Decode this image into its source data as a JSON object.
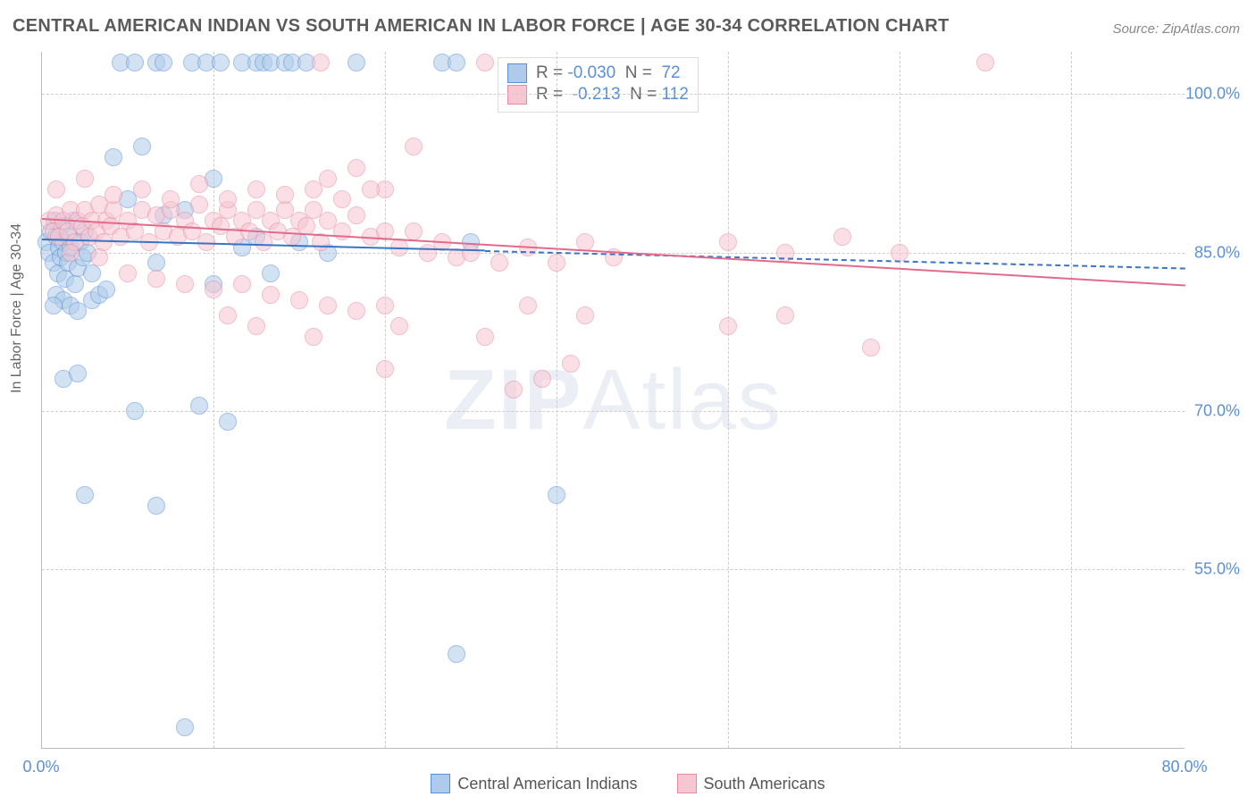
{
  "title": "CENTRAL AMERICAN INDIAN VS SOUTH AMERICAN IN LABOR FORCE | AGE 30-34 CORRELATION CHART",
  "source": "Source: ZipAtlas.com",
  "ylabel": "In Labor Force | Age 30-34",
  "watermark": {
    "bold": "ZIP",
    "rest": "Atlas"
  },
  "chart": {
    "type": "scatter",
    "background_color": "#ffffff",
    "grid_color": "#cccccc",
    "axis_color": "#bbbbbb",
    "xlim": [
      0,
      80
    ],
    "ylim": [
      38,
      104
    ],
    "x_ticks": [
      0,
      80
    ],
    "x_tick_labels": [
      "0.0%",
      "80.0%"
    ],
    "y_ticks": [
      55,
      70,
      85,
      100
    ],
    "y_tick_labels": [
      "55.0%",
      "70.0%",
      "85.0%",
      "100.0%"
    ],
    "tick_color": "#5b8fd6",
    "tick_fontsize": 18,
    "label_fontsize": 16,
    "label_color": "#666666",
    "x_gridlines": [
      12,
      24,
      36,
      48,
      60,
      72
    ],
    "marker_radius": 10,
    "marker_opacity": 0.55,
    "marker_stroke_width": 1.3,
    "series": [
      {
        "name": "Central American Indians",
        "fill": "#aecbeb",
        "stroke": "#5b8fd6",
        "trend": {
          "x1": 0,
          "y1": 86.3,
          "x2": 80,
          "y2": 83.6,
          "solid_until_x": 31,
          "color": "#3a74c4",
          "width": 2
        },
        "R": "-0.030",
        "N": "72",
        "points": [
          [
            0.3,
            86
          ],
          [
            0.5,
            85
          ],
          [
            0.6,
            87
          ],
          [
            0.8,
            84
          ],
          [
            0.9,
            88
          ],
          [
            1.0,
            86.5
          ],
          [
            1.1,
            83
          ],
          [
            1.2,
            85.5
          ],
          [
            1.3,
            84.5
          ],
          [
            1.4,
            87.5
          ],
          [
            1.5,
            86
          ],
          [
            1.6,
            82.5
          ],
          [
            1.7,
            85
          ],
          [
            1.8,
            84
          ],
          [
            1.9,
            86.5
          ],
          [
            2.0,
            85.5
          ],
          [
            2.2,
            88
          ],
          [
            2.3,
            82
          ],
          [
            2.5,
            83.5
          ],
          [
            2.7,
            86
          ],
          [
            2.9,
            84.5
          ],
          [
            3.0,
            87
          ],
          [
            3.2,
            85
          ],
          [
            3.5,
            83
          ],
          [
            1.0,
            81
          ],
          [
            1.5,
            80.5
          ],
          [
            2.0,
            80
          ],
          [
            0.8,
            80
          ],
          [
            3.5,
            80.5
          ],
          [
            4.0,
            81
          ],
          [
            2.5,
            79.5
          ],
          [
            4.5,
            81.5
          ],
          [
            5.5,
            103
          ],
          [
            6.5,
            103
          ],
          [
            8,
            103
          ],
          [
            8.5,
            103
          ],
          [
            10.5,
            103
          ],
          [
            11.5,
            103
          ],
          [
            12.5,
            103
          ],
          [
            14,
            103
          ],
          [
            15,
            103
          ],
          [
            15.5,
            103
          ],
          [
            16,
            103
          ],
          [
            17,
            103
          ],
          [
            17.5,
            103
          ],
          [
            18.5,
            103
          ],
          [
            22,
            103
          ],
          [
            28,
            103
          ],
          [
            29,
            103
          ],
          [
            5,
            94
          ],
          [
            7,
            95
          ],
          [
            12,
            92
          ],
          [
            1.5,
            73
          ],
          [
            2.5,
            73.5
          ],
          [
            6.5,
            70
          ],
          [
            11,
            70.5
          ],
          [
            13,
            69
          ],
          [
            3,
            62
          ],
          [
            8,
            61
          ],
          [
            29,
            47
          ],
          [
            10,
            40
          ],
          [
            6,
            90
          ],
          [
            8.5,
            88.5
          ],
          [
            10,
            89
          ],
          [
            14,
            85.5
          ],
          [
            15,
            86.5
          ],
          [
            18,
            86
          ],
          [
            20,
            85
          ],
          [
            30,
            86
          ],
          [
            8,
            84
          ],
          [
            12,
            82
          ],
          [
            16,
            83
          ],
          [
            36,
            62
          ]
        ]
      },
      {
        "name": "South Americans",
        "fill": "#f6c6d2",
        "stroke": "#e88aa2",
        "trend": {
          "x1": 0,
          "y1": 88.3,
          "x2": 80,
          "y2": 82.0,
          "solid_until_x": 80,
          "color": "#e26a8a",
          "width": 2.5
        },
        "R": "-0.213",
        "N": "112",
        "points": [
          [
            0.5,
            88
          ],
          [
            0.8,
            87
          ],
          [
            1.0,
            88.5
          ],
          [
            1.2,
            86.5
          ],
          [
            1.5,
            88
          ],
          [
            1.8,
            87
          ],
          [
            2.0,
            89
          ],
          [
            2.3,
            86
          ],
          [
            2.5,
            88
          ],
          [
            2.8,
            87.5
          ],
          [
            3.0,
            89
          ],
          [
            3.3,
            86.5
          ],
          [
            3.5,
            88
          ],
          [
            3.8,
            87
          ],
          [
            4.0,
            89.5
          ],
          [
            4.3,
            86
          ],
          [
            4.5,
            88
          ],
          [
            4.8,
            87.5
          ],
          [
            5.0,
            89
          ],
          [
            5.5,
            86.5
          ],
          [
            6.0,
            88
          ],
          [
            6.5,
            87
          ],
          [
            7.0,
            89
          ],
          [
            7.5,
            86
          ],
          [
            8.0,
            88.5
          ],
          [
            8.5,
            87
          ],
          [
            9.0,
            89
          ],
          [
            9.5,
            86.5
          ],
          [
            10,
            88
          ],
          [
            10.5,
            87
          ],
          [
            11,
            89.5
          ],
          [
            11.5,
            86
          ],
          [
            12,
            88
          ],
          [
            12.5,
            87.5
          ],
          [
            13,
            89
          ],
          [
            13.5,
            86.5
          ],
          [
            14,
            88
          ],
          [
            14.5,
            87
          ],
          [
            15,
            89
          ],
          [
            15.5,
            86
          ],
          [
            16,
            88
          ],
          [
            16.5,
            87
          ],
          [
            17,
            89
          ],
          [
            17.5,
            86.5
          ],
          [
            18,
            88
          ],
          [
            18.5,
            87.5
          ],
          [
            19,
            89
          ],
          [
            19.5,
            86
          ],
          [
            20,
            88
          ],
          [
            21,
            87
          ],
          [
            22,
            88.5
          ],
          [
            23,
            86.5
          ],
          [
            24,
            87
          ],
          [
            25,
            85.5
          ],
          [
            26,
            87
          ],
          [
            27,
            85
          ],
          [
            28,
            86
          ],
          [
            29,
            84.5
          ],
          [
            30,
            85
          ],
          [
            32,
            84
          ],
          [
            34,
            85.5
          ],
          [
            36,
            84
          ],
          [
            38,
            86
          ],
          [
            40,
            84.5
          ],
          [
            2,
            85
          ],
          [
            4,
            84.5
          ],
          [
            6,
            83
          ],
          [
            8,
            82.5
          ],
          [
            10,
            82
          ],
          [
            12,
            81.5
          ],
          [
            14,
            82
          ],
          [
            16,
            81
          ],
          [
            18,
            80.5
          ],
          [
            20,
            80
          ],
          [
            22,
            79.5
          ],
          [
            24,
            80
          ],
          [
            13,
            79
          ],
          [
            15,
            78
          ],
          [
            19,
            77
          ],
          [
            25,
            78
          ],
          [
            20,
            92
          ],
          [
            22,
            93
          ],
          [
            24,
            91
          ],
          [
            26,
            95
          ],
          [
            19.5,
            103
          ],
          [
            31,
            103
          ],
          [
            66,
            103
          ],
          [
            24,
            74
          ],
          [
            31,
            77
          ],
          [
            33,
            72
          ],
          [
            35,
            73
          ],
          [
            37,
            74.5
          ],
          [
            48,
            78
          ],
          [
            52,
            79
          ],
          [
            58,
            76
          ],
          [
            48,
            86
          ],
          [
            52,
            85
          ],
          [
            56,
            86.5
          ],
          [
            60,
            85
          ],
          [
            1,
            91
          ],
          [
            3,
            92
          ],
          [
            5,
            90.5
          ],
          [
            7,
            91
          ],
          [
            9,
            90
          ],
          [
            11,
            91.5
          ],
          [
            13,
            90
          ],
          [
            15,
            91
          ],
          [
            17,
            90.5
          ],
          [
            19,
            91
          ],
          [
            21,
            90
          ],
          [
            23,
            91
          ],
          [
            34,
            80
          ],
          [
            38,
            79
          ]
        ]
      }
    ]
  },
  "legend_bottom": [
    {
      "label": "Central American Indians",
      "fill": "#aecbeb",
      "stroke": "#5b8fd6"
    },
    {
      "label": "South Americans",
      "fill": "#f6c6d2",
      "stroke": "#e88aa2"
    }
  ]
}
